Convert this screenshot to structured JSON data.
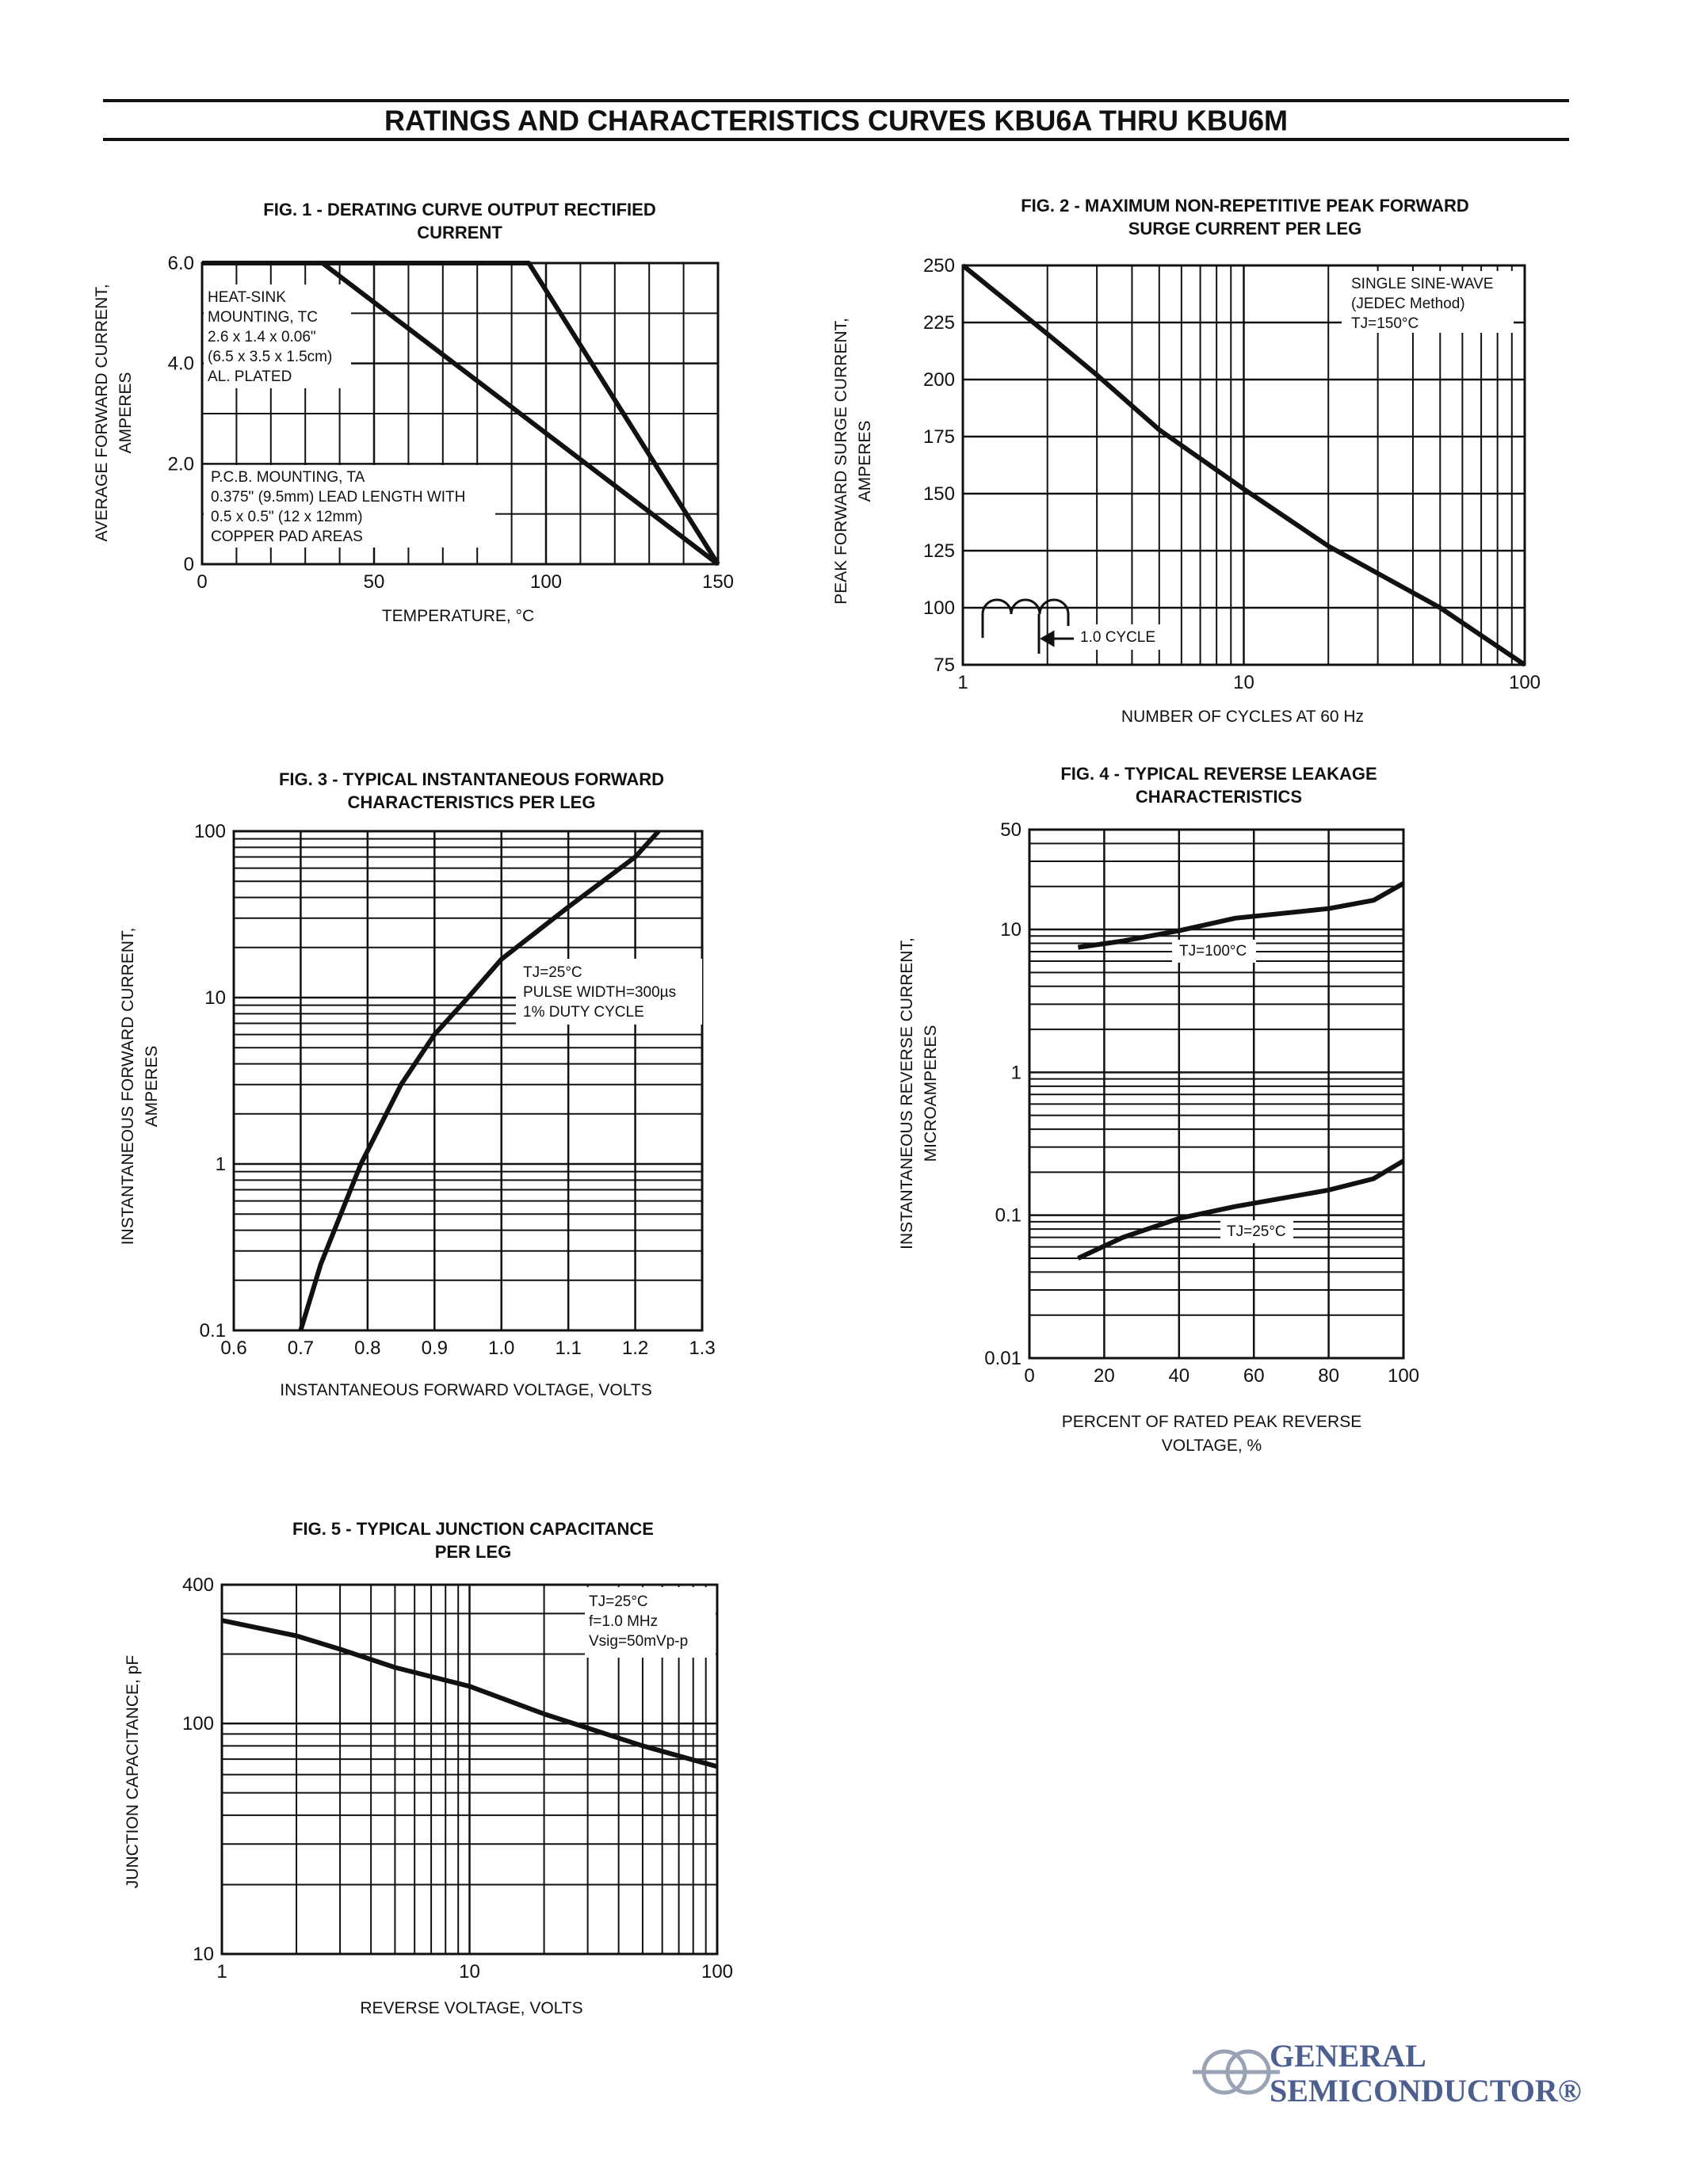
{
  "header": {
    "title": "RATINGS AND CHARACTERISTICS CURVES KBU6A THRU KBU6M"
  },
  "chart_data": [
    {
      "type": "line",
      "title": [
        "FIG. 1 - DERATING CURVE OUTPUT RECTIFIED",
        "CURRENT"
      ],
      "xlabel": [
        "TEMPERATURE, °C"
      ],
      "ylabel": [
        "AVERAGE FORWARD CURRENT,",
        "AMPERES"
      ],
      "x": [
        0,
        35,
        95,
        150
      ],
      "series": [
        {
          "color": "#111111",
          "values": [
            6,
            6,
            6,
            0
          ]
        },
        {
          "color": "#111111",
          "values": [
            6,
            6,
            2.87,
            0
          ]
        }
      ],
      "xlim": [
        0,
        150
      ],
      "ylim": [
        0,
        6
      ],
      "xticks": [
        0,
        50,
        100,
        150
      ],
      "yticks": [
        0,
        {
          "value": 2,
          "label": "2.0"
        },
        {
          "value": 4,
          "label": "4.0"
        },
        {
          "value": 6,
          "label": "6.0"
        }
      ],
      "xscale": "linear",
      "yscale": "linear",
      "grid": true,
      "notes": [
        [
          "HEAT-SINK",
          "MOUNTING, TC",
          "2.6 x 1.4 x 0.06\"",
          "(6.5 x 3.5 x 1.5cm)",
          "AL. PLATED"
        ],
        [
          "P.C.B. MOUNTING, TA",
          "0.375\" (9.5mm) LEAD LENGTH WITH",
          "0.5 x 0.5\" (12 x 12mm)",
          "COPPER PAD AREAS"
        ]
      ]
    },
    {
      "type": "line",
      "title": [
        "FIG. 2 - MAXIMUM NON-REPETITIVE PEAK FORWARD",
        "SURGE CURRENT PER LEG"
      ],
      "xlabel": [
        "NUMBER OF CYCLES AT 60 Hz"
      ],
      "ylabel": [
        "PEAK FORWARD SURGE CURRENT,",
        "AMPERES"
      ],
      "x": [
        1,
        2,
        3,
        5,
        10,
        20,
        50,
        100
      ],
      "series": [
        {
          "color": "#111111",
          "values": [
            250,
            220,
            202,
            178,
            152,
            127,
            100,
            75
          ]
        }
      ],
      "xlim": [
        1,
        100
      ],
      "ylim": [
        75,
        250
      ],
      "xticks": [
        1,
        10,
        100
      ],
      "yticks": [
        75,
        100,
        125,
        150,
        175,
        200,
        225,
        250
      ],
      "xscale": "log",
      "yscale": "linear",
      "grid": true,
      "notes": [
        [
          "SINGLE SINE-WAVE",
          "(JEDEC Method)",
          "TJ=150°C"
        ],
        [
          "1.0 CYCLE"
        ]
      ]
    },
    {
      "type": "line",
      "title": [
        "FIG. 3 - TYPICAL INSTANTANEOUS FORWARD",
        "CHARACTERISTICS PER LEG"
      ],
      "xlabel": [
        "INSTANTANEOUS FORWARD VOLTAGE, VOLTS"
      ],
      "ylabel": [
        "INSTANTANEOUS FORWARD CURRENT,",
        "AMPERES"
      ],
      "x": [
        0.7,
        0.73,
        0.79,
        0.85,
        0.9,
        0.95,
        1.0,
        1.1,
        1.2,
        1.235
      ],
      "series": [
        {
          "color": "#111111",
          "values": [
            0.1,
            0.25,
            1,
            3,
            6,
            10,
            17,
            35,
            70,
            100
          ]
        }
      ],
      "xlim": [
        0.6,
        1.3
      ],
      "ylim": [
        0.1,
        100
      ],
      "xticks": [
        0.6,
        0.7,
        0.8,
        0.9,
        {
          "value": 1,
          "label": "1.0"
        },
        1.1,
        1.2,
        1.3
      ],
      "yticks": [
        0.1,
        1,
        10,
        100
      ],
      "xscale": "linear",
      "yscale": "log",
      "grid": true,
      "notes": [
        [
          "TJ=25°C",
          "PULSE WIDTH=300µs",
          "1% DUTY CYCLE"
        ]
      ]
    },
    {
      "type": "line",
      "title": [
        "FIG. 4 - TYPICAL REVERSE LEAKAGE",
        "CHARACTERISTICS"
      ],
      "xlabel": [
        "PERCENT OF RATED PEAK REVERSE",
        "VOLTAGE, %"
      ],
      "ylabel": [
        "INSTANTANEOUS REVERSE CURRENT,",
        "MICROAMPERES"
      ],
      "x": [
        13,
        25,
        40,
        55,
        80,
        92,
        100
      ],
      "series": [
        {
          "name": "TJ=100°C",
          "color": "#111111",
          "values": [
            7.5,
            8.3,
            9.8,
            12,
            14,
            16,
            21
          ]
        },
        {
          "name": "TJ=25°C",
          "color": "#111111",
          "values": [
            0.05,
            0.07,
            0.095,
            0.115,
            0.15,
            0.18,
            0.24
          ]
        }
      ],
      "xlim": [
        0,
        100
      ],
      "ylim": [
        0.01,
        50
      ],
      "xticks": [
        0,
        20,
        40,
        60,
        80,
        100
      ],
      "yticks": [
        0.01,
        0.1,
        1,
        10,
        50
      ],
      "xscale": "linear",
      "yscale": "log",
      "grid": true,
      "notes": []
    },
    {
      "type": "line",
      "title": [
        "FIG. 5 - TYPICAL JUNCTION CAPACITANCE",
        "PER LEG"
      ],
      "xlabel": [
        "REVERSE VOLTAGE, VOLTS"
      ],
      "ylabel": [
        "JUNCTION CAPACITANCE, pF"
      ],
      "x": [
        1,
        2,
        3,
        5,
        10,
        20,
        50,
        100
      ],
      "series": [
        {
          "color": "#111111",
          "values": [
            280,
            240,
            210,
            175,
            145,
            110,
            80,
            65
          ]
        }
      ],
      "xlim": [
        1,
        100
      ],
      "ylim": [
        10,
        400
      ],
      "xticks": [
        1,
        10,
        100
      ],
      "yticks": [
        10,
        100,
        400
      ],
      "xscale": "log",
      "yscale": "log",
      "grid": true,
      "notes": [
        [
          "TJ=25°C",
          "f=1.0 MHz",
          "Vsig=50mVp-p"
        ]
      ]
    }
  ],
  "logo": {
    "line1": "GENERAL",
    "line2": "SEMICONDUCTOR®"
  }
}
